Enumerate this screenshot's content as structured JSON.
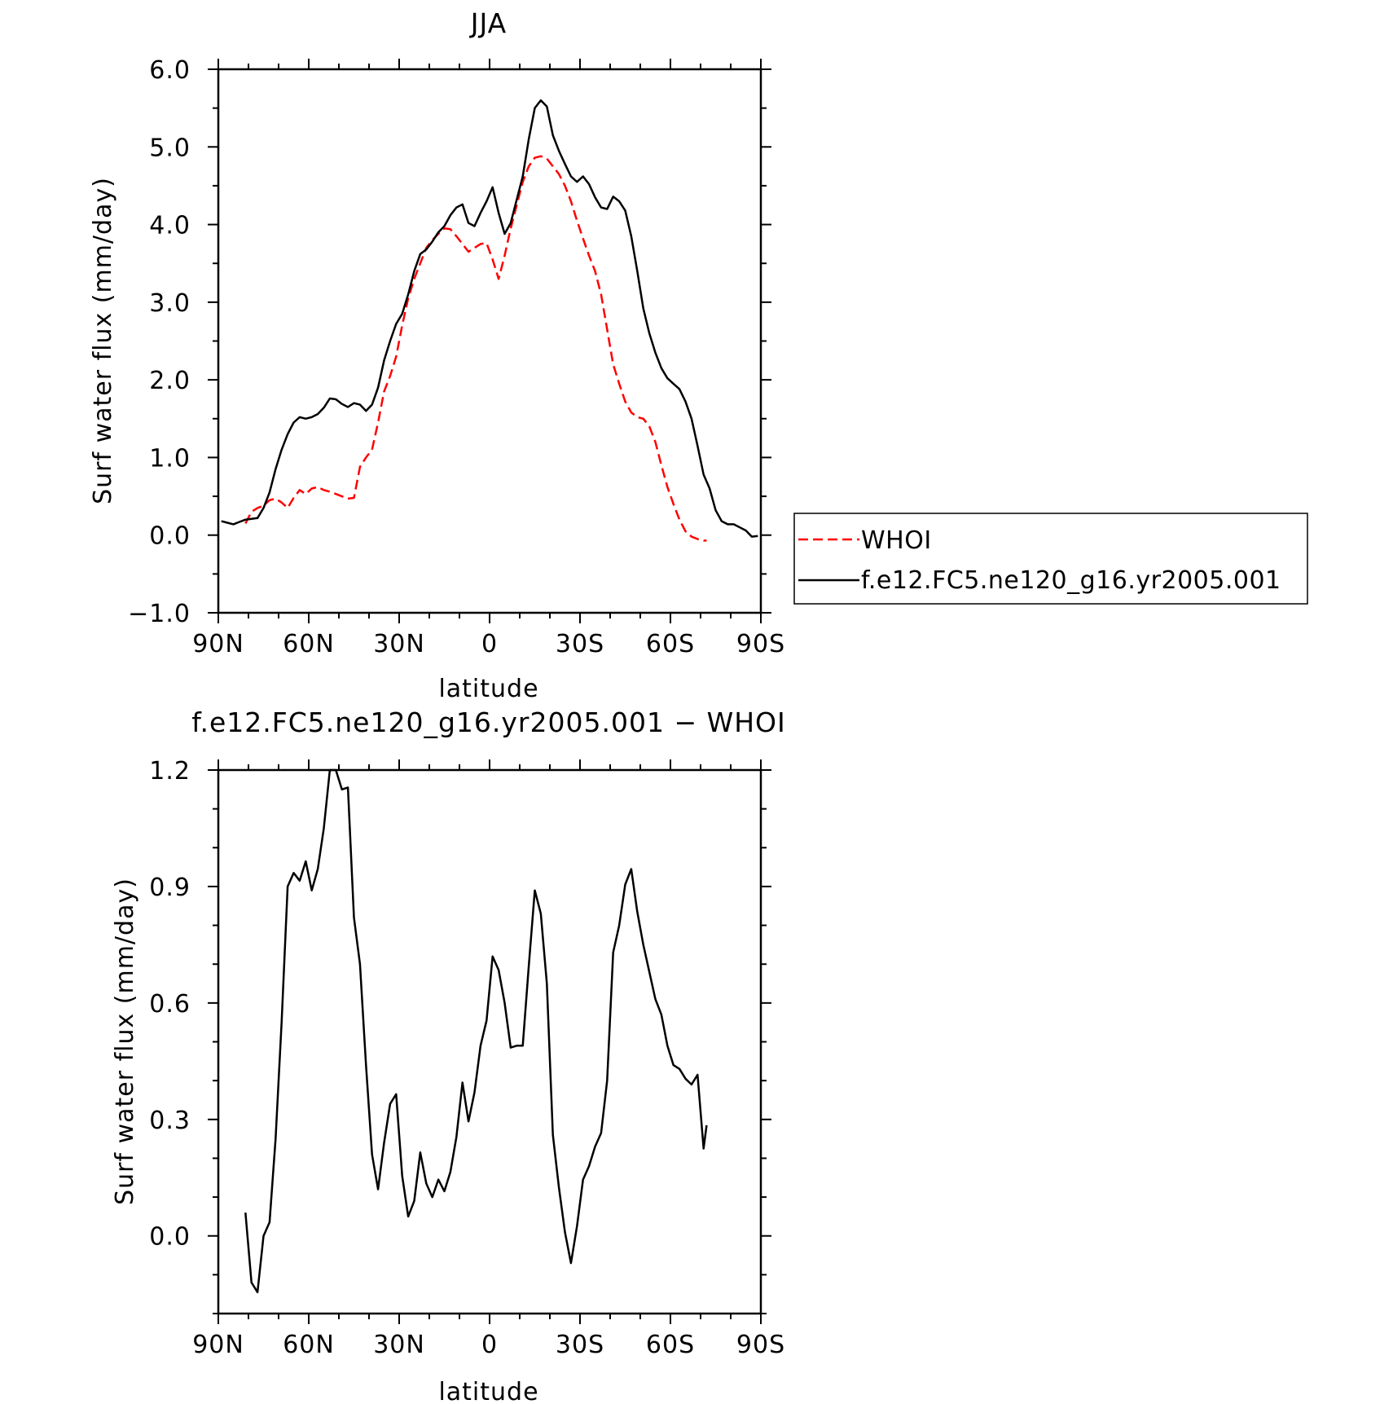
{
  "chart_data": [
    {
      "type": "line",
      "title": "JJA",
      "xlabel": "latitude",
      "ylabel": "Surf water flux (mm/day)",
      "xlim": [
        90,
        -90
      ],
      "ylim": [
        -1.0,
        6.0
      ],
      "x_tick_values": [
        90,
        60,
        30,
        0,
        -30,
        -60,
        -90
      ],
      "x_tick_labels": [
        "90N",
        "60N",
        "30N",
        "0",
        "30S",
        "60S",
        "90S"
      ],
      "y_tick_values": [
        -1.0,
        0.0,
        1.0,
        2.0,
        3.0,
        4.0,
        5.0,
        6.0
      ],
      "y_tick_labels": [
        "−1.0",
        "0.0",
        "1.0",
        "2.0",
        "3.0",
        "4.0",
        "5.0",
        "6.0"
      ],
      "grid": false,
      "legend_position": "right",
      "series": [
        {
          "name": "WHOI",
          "color": "#ff0000",
          "style": "dashed",
          "x": [
            81,
            79,
            77,
            75,
            73,
            71,
            69,
            67,
            65,
            63,
            61,
            59,
            57,
            55,
            53,
            51,
            49,
            47,
            45,
            43,
            41,
            39,
            37,
            35,
            33,
            31,
            29,
            27,
            25,
            23,
            21,
            19,
            17,
            15,
            13,
            11,
            9,
            7,
            5,
            3,
            1,
            -1,
            -3,
            -5,
            -7,
            -9,
            -11,
            -13,
            -15,
            -17,
            -19,
            -21,
            -23,
            -25,
            -27,
            -29,
            -31,
            -33,
            -35,
            -37,
            -39,
            -41,
            -43,
            -45,
            -47,
            -49,
            -51,
            -53,
            -55,
            -57,
            -59,
            -61,
            -63,
            -65,
            -67,
            -69,
            -71,
            -72
          ],
          "y": [
            0.15,
            0.3,
            0.35,
            0.38,
            0.45,
            0.47,
            0.42,
            0.35,
            0.48,
            0.58,
            0.53,
            0.6,
            0.62,
            0.58,
            0.56,
            0.53,
            0.5,
            0.47,
            0.48,
            0.88,
            1.0,
            1.1,
            1.45,
            1.85,
            2.05,
            2.3,
            2.7,
            3.05,
            3.3,
            3.5,
            3.7,
            3.8,
            3.88,
            3.95,
            3.94,
            3.85,
            3.75,
            3.65,
            3.7,
            3.75,
            3.76,
            3.55,
            3.3,
            3.6,
            3.95,
            4.25,
            4.55,
            4.75,
            4.86,
            4.88,
            4.85,
            4.75,
            4.65,
            4.5,
            4.3,
            4.05,
            3.82,
            3.6,
            3.4,
            3.1,
            2.65,
            2.2,
            1.95,
            1.72,
            1.58,
            1.52,
            1.5,
            1.4,
            1.2,
            0.9,
            0.62,
            0.4,
            0.2,
            0.05,
            -0.02,
            -0.05,
            -0.07,
            -0.07
          ]
        },
        {
          "name": "f.e12.FC5.ne120_g16.yr2005.001",
          "color": "#000000",
          "style": "solid",
          "x": [
            89,
            87,
            85,
            83,
            81,
            79,
            77,
            75,
            73,
            71,
            69,
            67,
            65,
            63,
            61,
            59,
            57,
            55,
            53,
            51,
            49,
            47,
            45,
            43,
            41,
            39,
            37,
            35,
            33,
            31,
            29,
            27,
            25,
            23,
            21,
            19,
            17,
            15,
            13,
            11,
            9,
            7,
            5,
            3,
            1,
            -1,
            -3,
            -5,
            -7,
            -9,
            -11,
            -13,
            -15,
            -17,
            -19,
            -21,
            -23,
            -25,
            -27,
            -29,
            -31,
            -33,
            -35,
            -37,
            -39,
            -41,
            -43,
            -45,
            -47,
            -49,
            -51,
            -53,
            -55,
            -57,
            -59,
            -61,
            -63,
            -65,
            -67,
            -69,
            -71,
            -73,
            -75,
            -77,
            -79,
            -81,
            -83,
            -85,
            -87,
            -89
          ],
          "y": [
            0.18,
            0.16,
            0.14,
            0.17,
            0.2,
            0.21,
            0.22,
            0.35,
            0.55,
            0.85,
            1.1,
            1.3,
            1.45,
            1.52,
            1.5,
            1.52,
            1.56,
            1.64,
            1.76,
            1.75,
            1.69,
            1.65,
            1.7,
            1.68,
            1.6,
            1.68,
            1.9,
            2.25,
            2.5,
            2.72,
            2.85,
            3.1,
            3.4,
            3.62,
            3.68,
            3.78,
            3.9,
            3.98,
            4.12,
            4.22,
            4.26,
            4.02,
            3.98,
            4.15,
            4.3,
            4.48,
            4.15,
            3.88,
            4.02,
            4.32,
            4.62,
            5.1,
            5.5,
            5.6,
            5.52,
            5.15,
            4.95,
            4.78,
            4.62,
            4.55,
            4.62,
            4.52,
            4.35,
            4.22,
            4.2,
            4.36,
            4.3,
            4.18,
            3.85,
            3.4,
            2.92,
            2.6,
            2.35,
            2.15,
            2.02,
            1.95,
            1.88,
            1.72,
            1.5,
            1.15,
            0.78,
            0.6,
            0.32,
            0.18,
            0.14,
            0.14,
            0.1,
            0.06,
            -0.02,
            -0.01
          ]
        }
      ]
    },
    {
      "type": "line",
      "title": "f.e12.FC5.ne120_g16.yr2005.001 − WHOI",
      "xlabel": "latitude",
      "ylabel": "Surf water flux (mm/day)",
      "xlim": [
        90,
        -90
      ],
      "ylim": [
        -0.2,
        1.2
      ],
      "x_tick_values": [
        90,
        60,
        30,
        0,
        -30,
        -60,
        -90
      ],
      "x_tick_labels": [
        "90N",
        "60N",
        "30N",
        "0",
        "30S",
        "60S",
        "90S"
      ],
      "y_tick_values": [
        0.0,
        0.3,
        0.6,
        0.9,
        1.2
      ],
      "y_tick_labels": [
        "0.0",
        "0.3",
        "0.6",
        "0.9",
        "1.2"
      ],
      "grid": false,
      "series": [
        {
          "color": "#000000",
          "style": "solid",
          "x": [
            81,
            79,
            77,
            75,
            73,
            71,
            69,
            67,
            65,
            63,
            61,
            59,
            57,
            55,
            53,
            51,
            49,
            47,
            45,
            43,
            41,
            39,
            37,
            35,
            33,
            31,
            29,
            27,
            25,
            23,
            21,
            19,
            17,
            15,
            13,
            11,
            9,
            7,
            5,
            3,
            1,
            -1,
            -3,
            -5,
            -7,
            -9,
            -11,
            -13,
            -15,
            -17,
            -19,
            -21,
            -23,
            -25,
            -27,
            -29,
            -31,
            -33,
            -35,
            -37,
            -39,
            -41,
            -43,
            -45,
            -47,
            -49,
            -51,
            -53,
            -55,
            -57,
            -59,
            -61,
            -63,
            -65,
            -67,
            -69,
            -71,
            -72
          ],
          "y": [
            0.06,
            -0.12,
            -0.145,
            0.0,
            0.035,
            0.25,
            0.55,
            0.9,
            0.935,
            0.915,
            0.965,
            0.89,
            0.945,
            1.05,
            1.2,
            1.2,
            1.15,
            1.155,
            0.82,
            0.7,
            0.44,
            0.21,
            0.12,
            0.24,
            0.34,
            0.365,
            0.155,
            0.05,
            0.09,
            0.215,
            0.135,
            0.1,
            0.145,
            0.115,
            0.165,
            0.255,
            0.395,
            0.295,
            0.37,
            0.49,
            0.555,
            0.72,
            0.685,
            0.6,
            0.485,
            0.49,
            0.49,
            0.695,
            0.89,
            0.83,
            0.65,
            0.26,
            0.125,
            0.01,
            -0.07,
            0.025,
            0.145,
            0.18,
            0.23,
            0.265,
            0.4,
            0.73,
            0.8,
            0.905,
            0.945,
            0.835,
            0.75,
            0.68,
            0.61,
            0.57,
            0.49,
            0.44,
            0.43,
            0.405,
            0.39,
            0.415,
            0.225,
            0.285
          ]
        }
      ]
    }
  ],
  "legend": {
    "entries": [
      {
        "label": "WHOI",
        "color": "#ff0000",
        "style": "dashed"
      },
      {
        "label": "f.e12.FC5.ne120_g16.yr2005.001",
        "color": "#000000",
        "style": "solid"
      }
    ]
  }
}
